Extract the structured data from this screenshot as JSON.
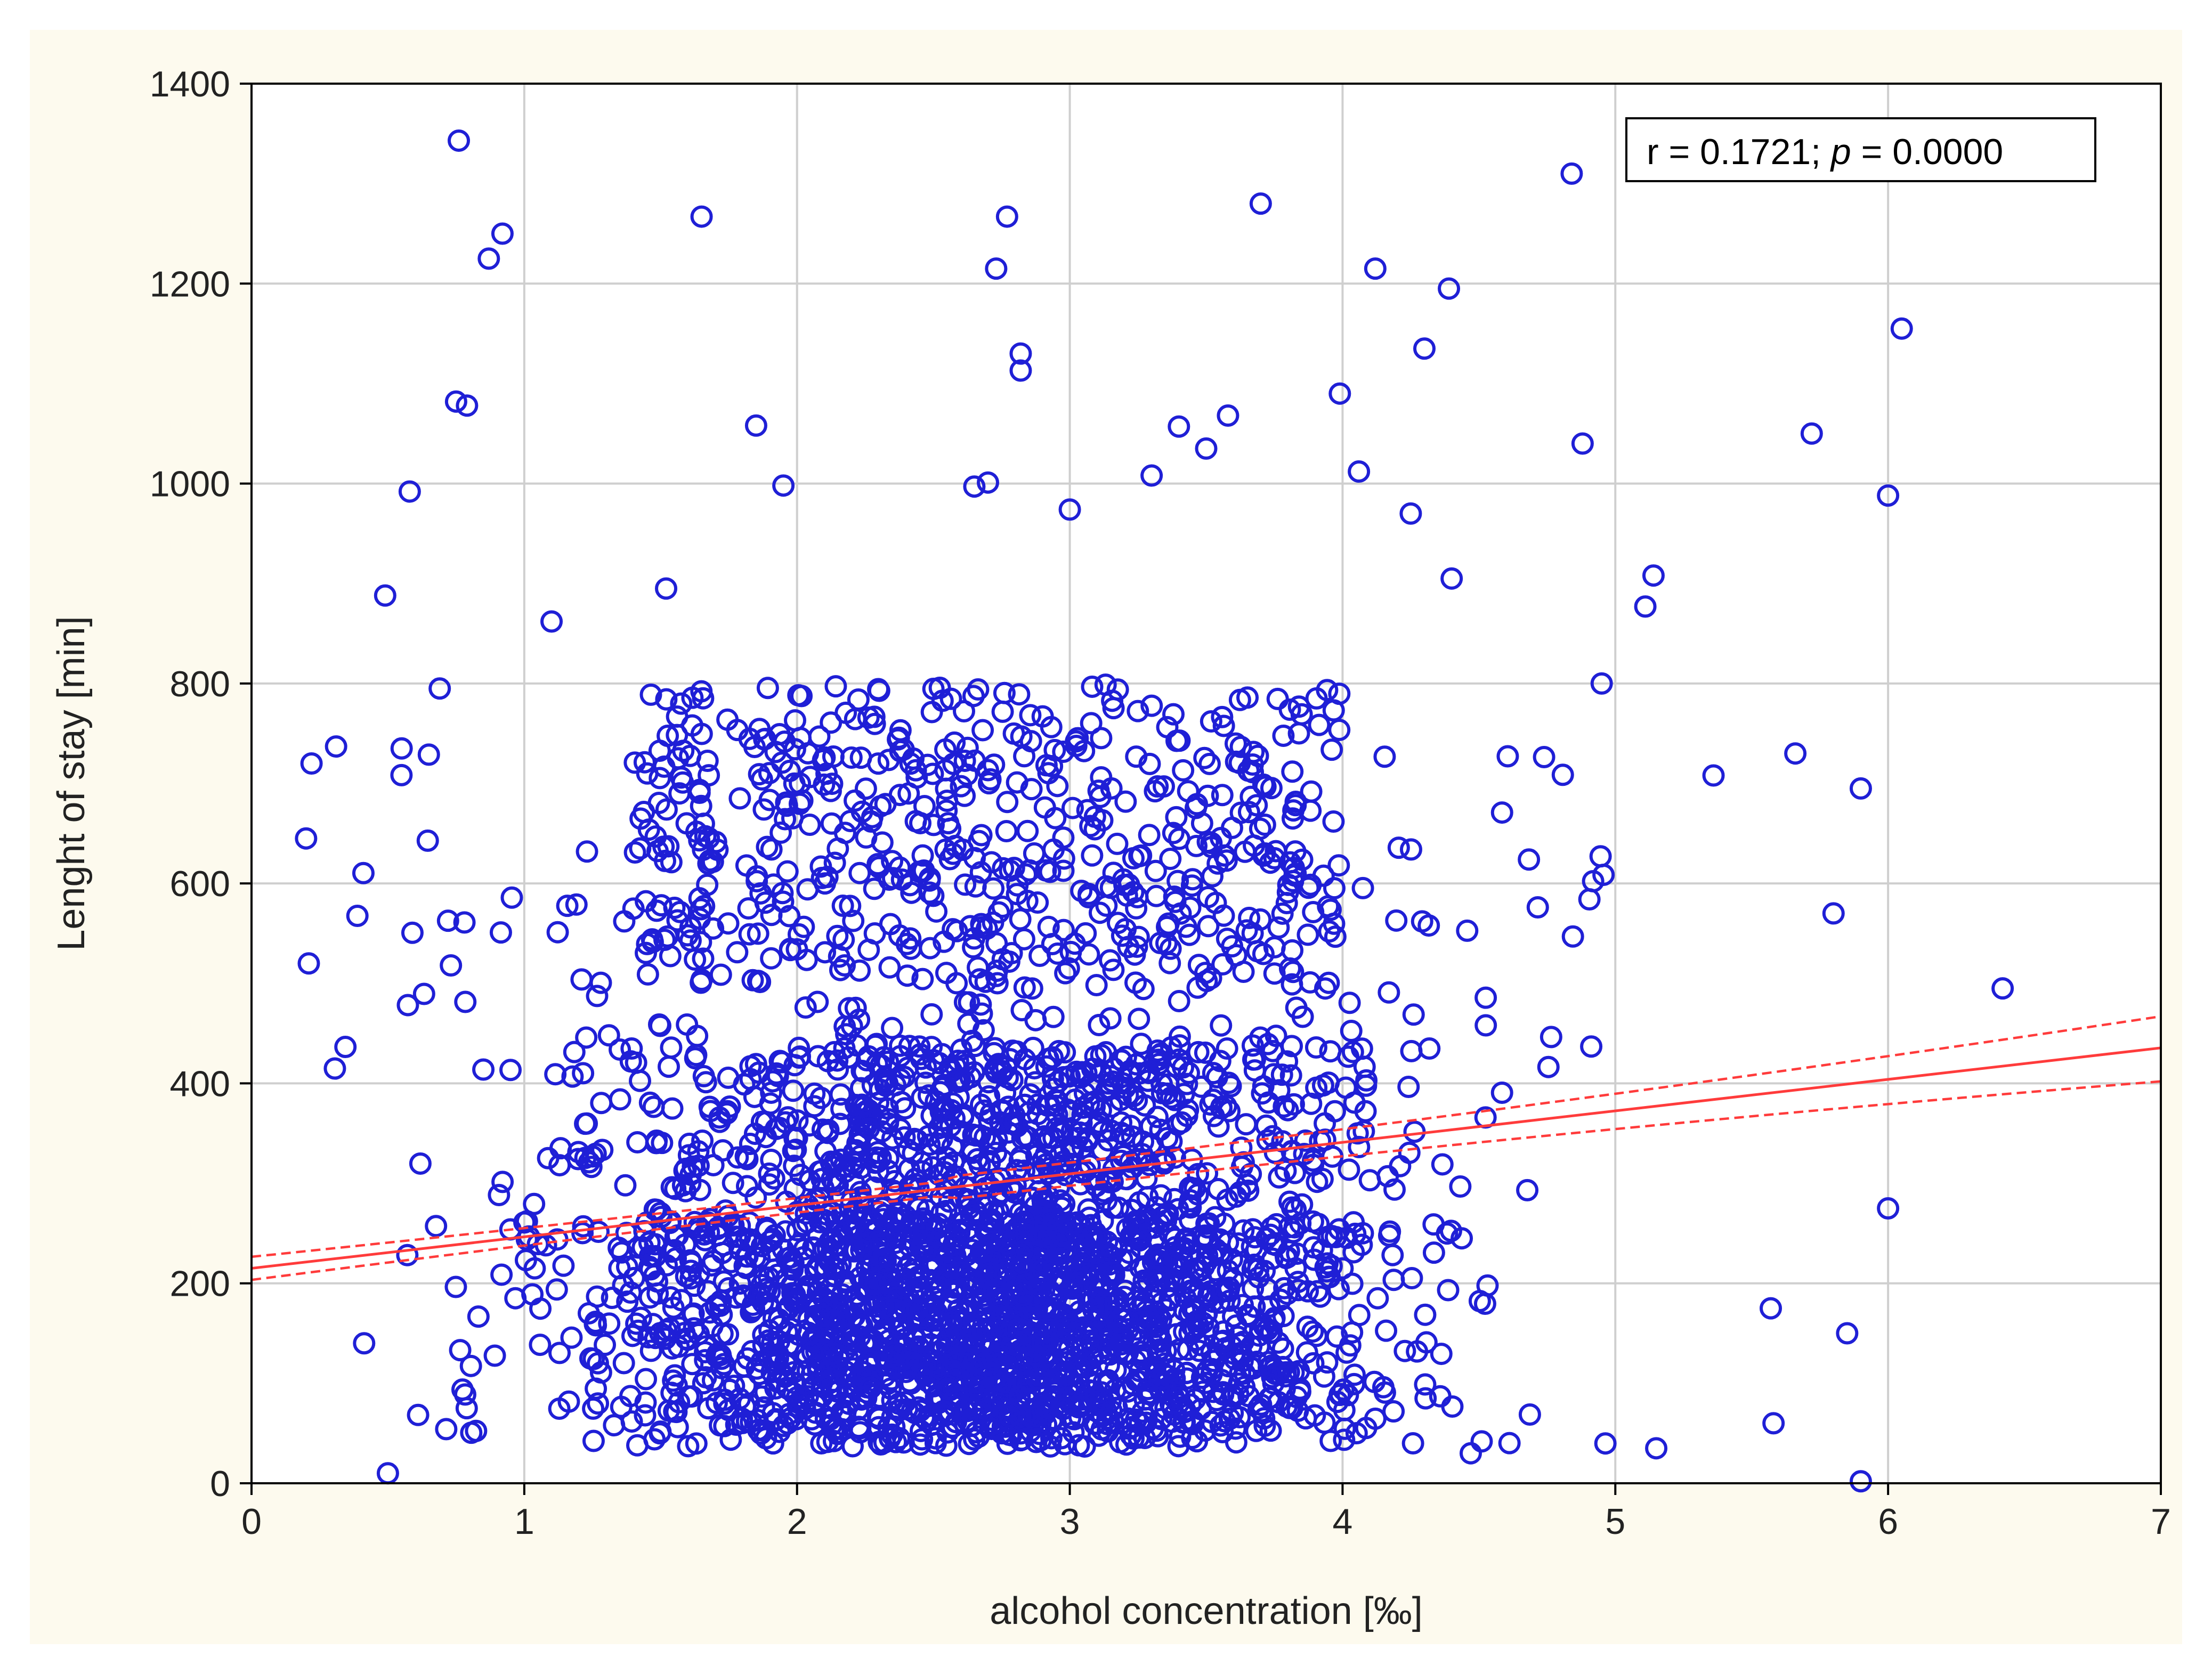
{
  "chart_data": {
    "type": "scatter",
    "title": "",
    "xlabel": "alcohol concentration [‰]",
    "ylabel": "Lenght of stay [min]",
    "xlim": [
      0,
      7
    ],
    "ylim": [
      0,
      1400
    ],
    "xticks": [
      0,
      1,
      2,
      3,
      4,
      5,
      6,
      7
    ],
    "yticks": [
      0,
      200,
      400,
      600,
      800,
      1000,
      1200,
      1400
    ],
    "grid": true,
    "annotation": "r = 0.1721; p = 0.0000",
    "annotation_parts": {
      "r_text": "r = 0.1721; ",
      "p_symbol": "p",
      "p_text": " = 0.0000"
    },
    "annotation_position": "top-right",
    "colors": {
      "points": "#1f1fd6",
      "regression": "#ff3b3b",
      "grid": "#cfcfcf",
      "background": "#fdfaee"
    },
    "regression": {
      "intercept": 215,
      "slope": 31.5,
      "ci_at_x0": [
        195,
        235
      ],
      "ci_at_x7": [
        402,
        467
      ]
    },
    "highlighted_points": [
      {
        "x": 0.76,
        "y": 1343
      },
      {
        "x": 0.92,
        "y": 1250
      },
      {
        "x": 0.87,
        "y": 1225
      },
      {
        "x": 0.75,
        "y": 1082
      },
      {
        "x": 0.79,
        "y": 1078
      },
      {
        "x": 0.58,
        "y": 992
      },
      {
        "x": 0.49,
        "y": 888
      },
      {
        "x": 0.69,
        "y": 795
      },
      {
        "x": 1.1,
        "y": 862
      },
      {
        "x": 1.52,
        "y": 895
      },
      {
        "x": 1.65,
        "y": 1267
      },
      {
        "x": 1.85,
        "y": 1058
      },
      {
        "x": 1.95,
        "y": 998
      },
      {
        "x": 2.73,
        "y": 1215
      },
      {
        "x": 2.77,
        "y": 1267
      },
      {
        "x": 2.82,
        "y": 1130
      },
      {
        "x": 2.82,
        "y": 1113
      },
      {
        "x": 2.65,
        "y": 997
      },
      {
        "x": 2.7,
        "y": 1001
      },
      {
        "x": 3.0,
        "y": 974
      },
      {
        "x": 3.3,
        "y": 1008
      },
      {
        "x": 3.4,
        "y": 1057
      },
      {
        "x": 3.5,
        "y": 1035
      },
      {
        "x": 3.58,
        "y": 1068
      },
      {
        "x": 3.7,
        "y": 1280
      },
      {
        "x": 3.99,
        "y": 1090
      },
      {
        "x": 4.06,
        "y": 1012
      },
      {
        "x": 4.12,
        "y": 1215
      },
      {
        "x": 4.3,
        "y": 1135
      },
      {
        "x": 4.39,
        "y": 1195
      },
      {
        "x": 4.25,
        "y": 970
      },
      {
        "x": 4.4,
        "y": 905
      },
      {
        "x": 4.84,
        "y": 1310
      },
      {
        "x": 4.88,
        "y": 1040
      },
      {
        "x": 4.95,
        "y": 800
      },
      {
        "x": 5.14,
        "y": 908
      },
      {
        "x": 5.11,
        "y": 877
      },
      {
        "x": 5.36,
        "y": 708
      },
      {
        "x": 5.66,
        "y": 730
      },
      {
        "x": 5.72,
        "y": 1050
      },
      {
        "x": 6.05,
        "y": 1155
      },
      {
        "x": 6.0,
        "y": 988
      },
      {
        "x": 5.9,
        "y": 695
      },
      {
        "x": 6.42,
        "y": 495
      },
      {
        "x": 6.0,
        "y": 275
      },
      {
        "x": 5.85,
        "y": 150
      },
      {
        "x": 5.9,
        "y": 2
      },
      {
        "x": 5.58,
        "y": 60
      },
      {
        "x": 5.57,
        "y": 175
      },
      {
        "x": 5.15,
        "y": 35
      },
      {
        "x": 0.5,
        "y": 10
      },
      {
        "x": 0.2,
        "y": 645
      },
      {
        "x": 0.22,
        "y": 720
      },
      {
        "x": 0.31,
        "y": 737
      },
      {
        "x": 0.21,
        "y": 520
      },
      {
        "x": 4.47,
        "y": 30
      },
      {
        "x": 5.8,
        "y": 570
      }
    ],
    "points_note": "about 3,500 observations; most between x 0.2-5.2 and y 0-700"
  }
}
